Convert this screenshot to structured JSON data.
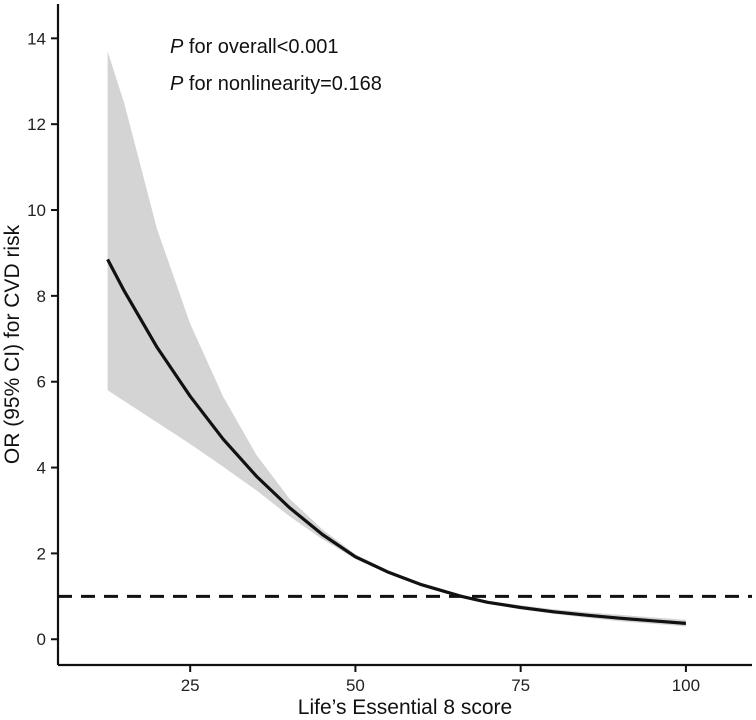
{
  "chart_data": {
    "type": "line",
    "title": "",
    "xlabel": "Life’s Essential 8 score",
    "ylabel": "OR (95% CI) for CVD risk",
    "xlim": [
      5,
      110
    ],
    "ylim": [
      -0.6,
      14.8
    ],
    "x_ticks": [
      25,
      50,
      75,
      100
    ],
    "y_ticks": [
      0,
      2,
      4,
      6,
      8,
      10,
      12,
      14
    ],
    "grid": false,
    "reference_line": {
      "y": 1,
      "style": "dashed"
    },
    "series": [
      {
        "name": "OR",
        "x": [
          12.5,
          15,
          20,
          25,
          30,
          35,
          40,
          45,
          50,
          55,
          60,
          66,
          70,
          75,
          80,
          85,
          90,
          95,
          100
        ],
        "y": [
          8.85,
          8.12,
          6.8,
          5.66,
          4.66,
          3.8,
          3.07,
          2.44,
          1.92,
          1.56,
          1.27,
          1.0,
          0.86,
          0.74,
          0.64,
          0.56,
          0.49,
          0.43,
          0.37
        ],
        "lower": [
          5.8,
          5.55,
          5.05,
          4.55,
          4.02,
          3.47,
          2.87,
          2.33,
          1.87,
          1.52,
          1.24,
          0.98,
          0.83,
          0.7,
          0.59,
          0.5,
          0.42,
          0.36,
          0.3
        ],
        "upper": [
          13.7,
          12.5,
          9.55,
          7.35,
          5.65,
          4.3,
          3.28,
          2.56,
          1.98,
          1.6,
          1.3,
          1.02,
          0.89,
          0.79,
          0.7,
          0.63,
          0.57,
          0.51,
          0.45
        ]
      }
    ],
    "annotations": [
      {
        "italic": "P",
        "text": " for overall<0.001"
      },
      {
        "italic": "P",
        "text": " for nonlinearity=0.168"
      }
    ]
  }
}
